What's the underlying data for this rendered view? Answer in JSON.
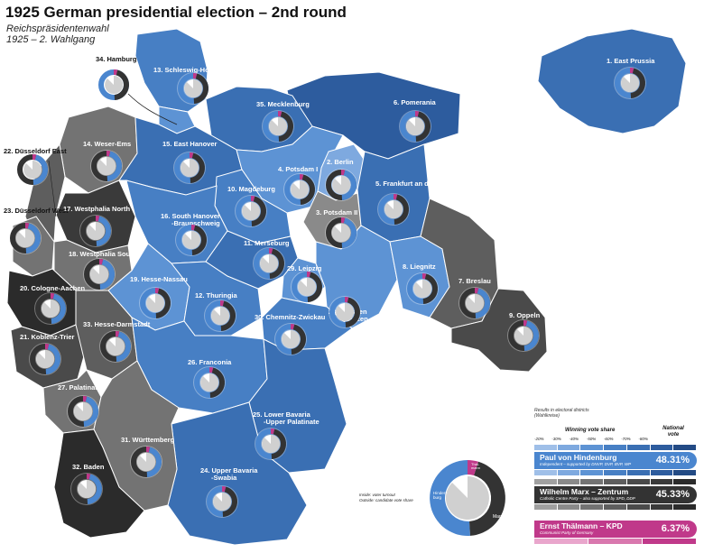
{
  "header": {
    "title": "1925 German presidential election – 2nd round",
    "subtitle_line1": "Reichspräsidentenwahl",
    "subtitle_line2": "1925 – 2. Wahlgang"
  },
  "colors": {
    "hindenburg": "#4a86cf",
    "marx": "#333333",
    "thaelmann": "#c0398a",
    "turnout": "#d0d0d0",
    "blue_scale": [
      "#9fbfe8",
      "#7ea9df",
      "#5d93d4",
      "#477fc4",
      "#3a6fb3",
      "#2d5c9e",
      "#234b85"
    ],
    "grey_scale": [
      "#a0a0a0",
      "#8a8a8a",
      "#737373",
      "#5e5e5e",
      "#4a4a4a",
      "#3a3a3a",
      "#2b2b2b"
    ]
  },
  "districts": [
    {
      "label": "1. East Prussia",
      "winner": "Hindenburg"
    },
    {
      "label": "2. Berlin",
      "winner": "Marx"
    },
    {
      "label": "3. Potsdam II",
      "winner": "Marx"
    },
    {
      "label": "4. Potsdam I",
      "winner": "Hindenburg"
    },
    {
      "label": "5. Frankfurt an der Oder",
      "winner": "Hindenburg"
    },
    {
      "label": "6. Pomerania",
      "winner": "Hindenburg"
    },
    {
      "label": "7. Breslau",
      "winner": "Marx"
    },
    {
      "label": "8. Liegnitz",
      "winner": "Hindenburg"
    },
    {
      "label": "9. Oppeln",
      "winner": "Marx"
    },
    {
      "label": "10. Magdeburg",
      "winner": "Hindenburg"
    },
    {
      "label": "11. Merseburg",
      "winner": "Hindenburg"
    },
    {
      "label": "12. Thuringia",
      "winner": "Hindenburg"
    },
    {
      "label": "13. Schleswig-Holstein",
      "winner": "Hindenburg"
    },
    {
      "label": "14. Weser-Ems",
      "winner": "Marx"
    },
    {
      "label": "15. East Hanover",
      "winner": "Hindenburg"
    },
    {
      "label": "16. South Hanover -Braunschweig",
      "winner": "Hindenburg"
    },
    {
      "label": "17. Westphalia North",
      "winner": "Marx"
    },
    {
      "label": "18. Westphalia South",
      "winner": "Marx"
    },
    {
      "label": "19. Hesse-Nassau",
      "winner": "Hindenburg"
    },
    {
      "label": "20. Cologne-Aachen",
      "winner": "Marx"
    },
    {
      "label": "21. Koblenz-Trier",
      "winner": "Marx"
    },
    {
      "label": "22. Düsseldorf East",
      "winner": "Marx"
    },
    {
      "label": "23. Düsseldorf West",
      "winner": "Marx"
    },
    {
      "label": "24. Upper Bavaria -Swabia",
      "winner": "Hindenburg"
    },
    {
      "label": "25. Lower Bavaria -Upper Palatinate",
      "winner": "Hindenburg"
    },
    {
      "label": "26. Franconia",
      "winner": "Hindenburg"
    },
    {
      "label": "27. Palatinate",
      "winner": "Marx"
    },
    {
      "label": "28. Dresden -Bautzen",
      "winner": "Hindenburg"
    },
    {
      "label": "29. Leipzig",
      "winner": "Hindenburg"
    },
    {
      "label": "30. Chemnitz-Zwickau",
      "winner": "Hindenburg"
    },
    {
      "label": "31. Württemberg",
      "winner": "Marx"
    },
    {
      "label": "32. Baden",
      "winner": "Marx"
    },
    {
      "label": "33. Hesse-Darmstadt",
      "winner": "Marx"
    },
    {
      "label": "34. Hamburg",
      "winner": "Hindenburg"
    },
    {
      "label": "35. Mecklenburg",
      "winner": "Hindenburg"
    }
  ],
  "legend": {
    "results_note_line1": "Results in electoral districts",
    "results_note_line2": "(Wahlkreise)",
    "winning_vote_share": "Winning vote share",
    "national_vote_line1": "National",
    "national_vote_line2": "vote",
    "scale_ticks": [
      "-20%",
      "-30%",
      "-40%",
      "-50%",
      "-60%",
      "-70%",
      "-80%"
    ],
    "donut_note_line1": "Inside: voter turnout",
    "donut_note_line2": "Outside: candidate vote share",
    "donut_label_hindenburg_line1": "Hinden-",
    "donut_label_hindenburg_line2": "burg",
    "donut_label_thaelmann_line1": "Thäl-",
    "donut_label_thaelmann_line2": "mann",
    "donut_label_marx": "Marx",
    "candidates": [
      {
        "name": "Paul von Hindenburg",
        "party": "Independent – supported by DNVP, DVP, BVP, WP",
        "percent": "48.31%"
      },
      {
        "name": "Wilhelm Marx – Zentrum",
        "party": "Catholic Centre Party – also supported by SPD, DDP",
        "percent": "45.33%"
      },
      {
        "name": "Ernst Thälmann – KPD",
        "party": "Communist Party of Germany",
        "percent": "6.37%"
      }
    ]
  }
}
